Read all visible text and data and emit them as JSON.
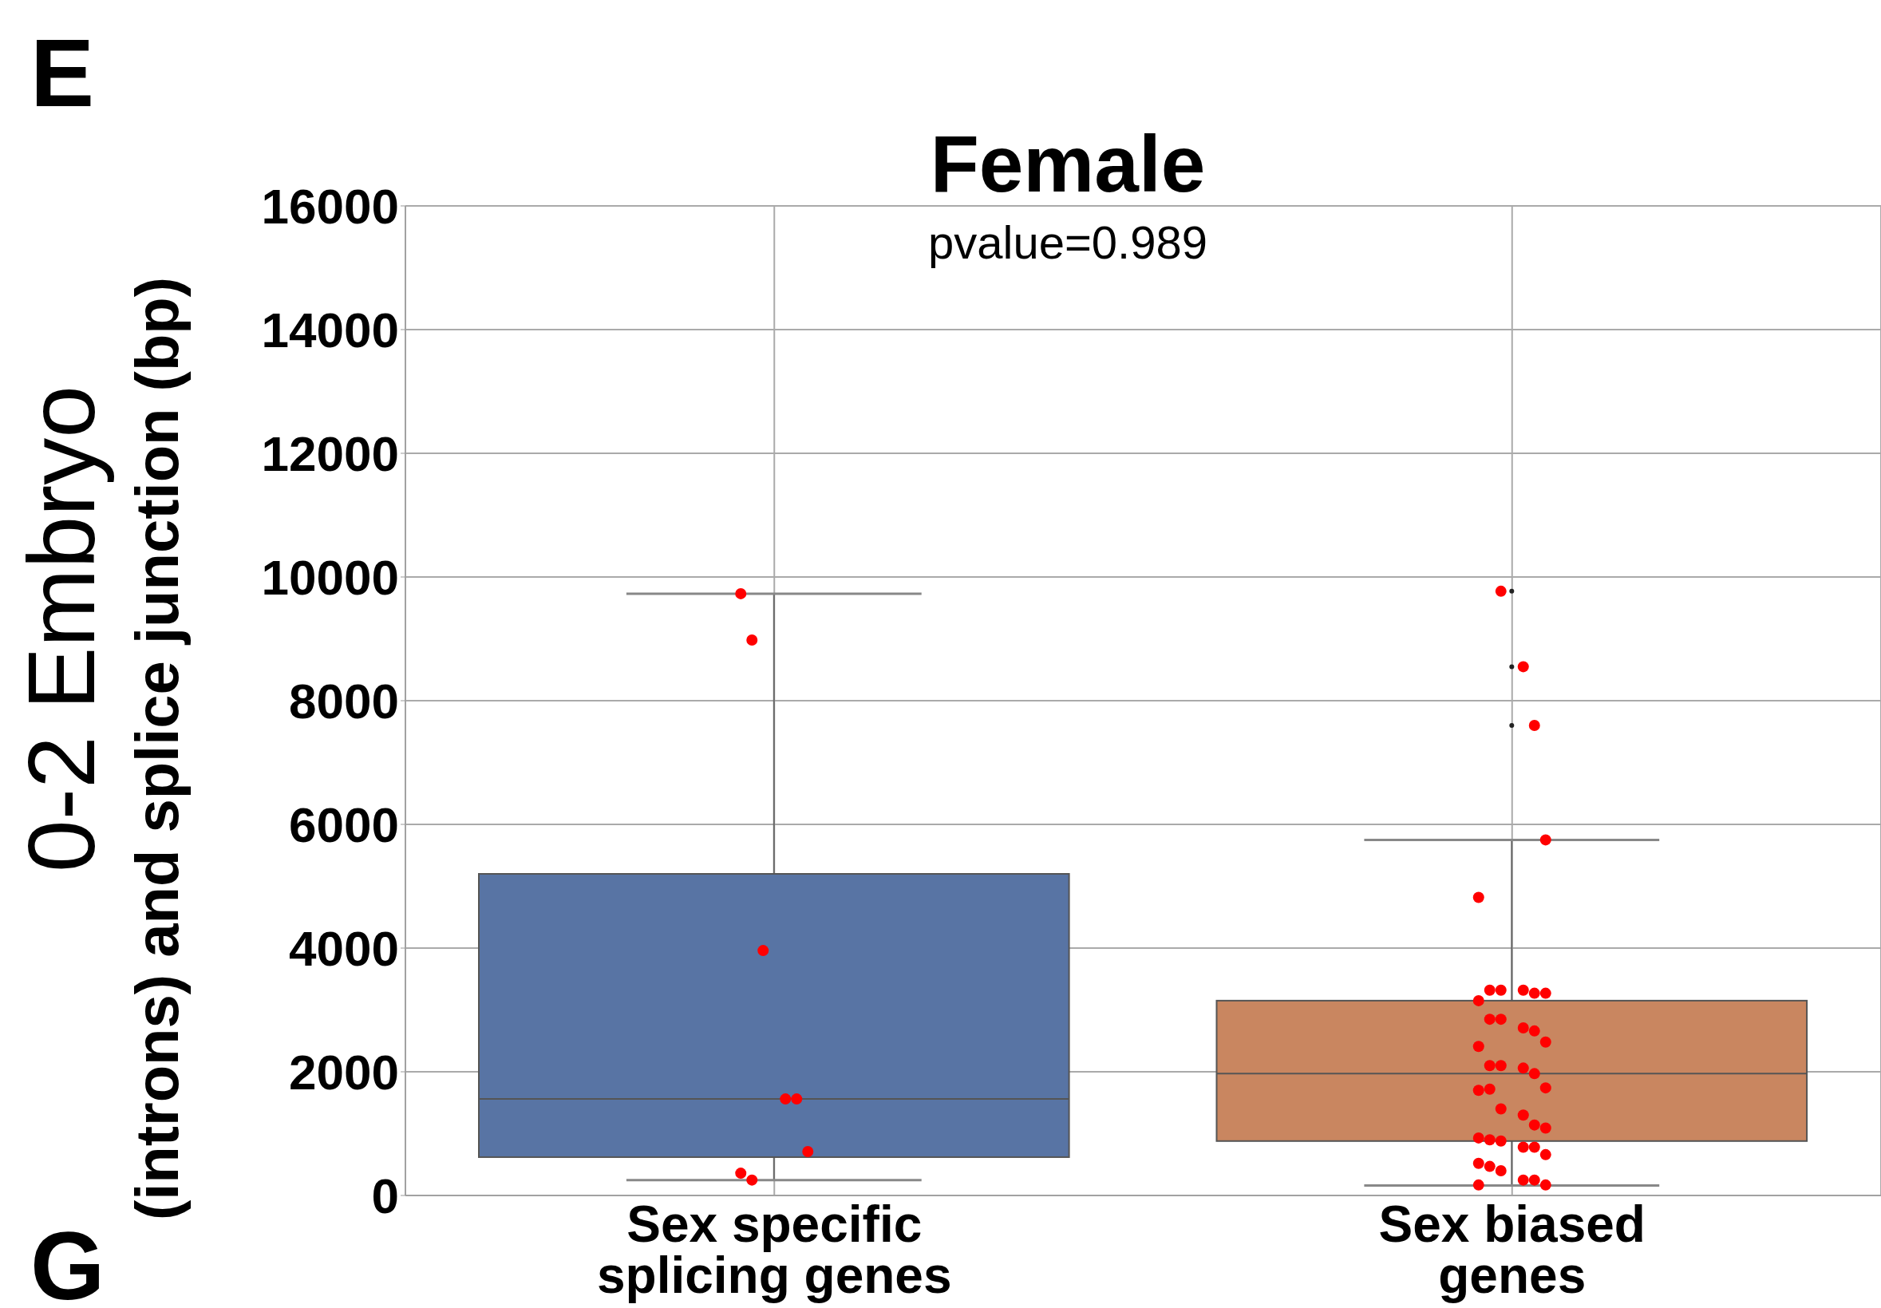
{
  "chart_data": {
    "type": "box",
    "title": "Female",
    "subtitle": "pvalue=0.989",
    "ylabel": "0-2 Embryo\n(introns) and splice junction (bp)",
    "annotations": [
      "E",
      "G"
    ],
    "categories": [
      "Sex specific splicing genes",
      "Sex biased genes"
    ],
    "ylim": [
      0,
      16000
    ],
    "yticks": [
      0,
      2000,
      4000,
      6000,
      8000,
      10000,
      12000,
      14000,
      16000
    ],
    "grid": true,
    "series": [
      {
        "colors": [
          "#5874a4",
          "#c98660"
        ],
        "boxes": [
          {
            "low": 250,
            "q1": 620,
            "median": 1560,
            "q3": 5200,
            "high": 9730
          },
          {
            "low": 160,
            "q1": 880,
            "median": 1970,
            "q3": 3150,
            "high": 5750,
            "outliers": [
              9770,
              8550,
              7600
            ]
          }
        ]
      },
      {
        "type": "scatter",
        "color": "#ff0000",
        "marker": "circle",
        "x": [
          "Sex specific splicing genes",
          "Sex specific splicing genes",
          "Sex specific splicing genes",
          "Sex specific splicing genes",
          "Sex specific splicing genes",
          "Sex specific splicing genes",
          "Sex specific splicing genes",
          "Sex specific splicing genes",
          "Sex biased genes",
          "Sex biased genes",
          "Sex biased genes",
          "Sex biased genes",
          "Sex biased genes",
          "Sex biased genes",
          "Sex biased genes",
          "Sex biased genes",
          "Sex biased genes",
          "Sex biased genes",
          "Sex biased genes",
          "Sex biased genes",
          "Sex biased genes",
          "Sex biased genes",
          "Sex biased genes",
          "Sex biased genes",
          "Sex biased genes",
          "Sex biased genes",
          "Sex biased genes",
          "Sex biased genes",
          "Sex biased genes",
          "Sex biased genes",
          "Sex biased genes",
          "Sex biased genes",
          "Sex biased genes",
          "Sex biased genes",
          "Sex biased genes",
          "Sex biased genes",
          "Sex biased genes",
          "Sex biased genes",
          "Sex biased genes",
          "Sex biased genes",
          "Sex biased genes",
          "Sex biased genes",
          "Sex biased genes",
          "Sex biased genes",
          "Sex biased genes",
          "Sex biased genes",
          "Sex biased genes",
          "Sex biased genes",
          "Sex biased genes"
        ],
        "values": [
          9730,
          8980,
          3960,
          1560,
          1560,
          710,
          360,
          250,
          9770,
          8550,
          7600,
          5750,
          4820,
          3320,
          3320,
          3320,
          3270,
          3270,
          3150,
          2850,
          2850,
          2710,
          2660,
          2480,
          2410,
          2100,
          2100,
          2060,
          1970,
          1740,
          1700,
          1720,
          1400,
          1300,
          1140,
          1090,
          930,
          900,
          880,
          780,
          780,
          660,
          520,
          470,
          400,
          250,
          250,
          170,
          170
        ]
      }
    ]
  }
}
